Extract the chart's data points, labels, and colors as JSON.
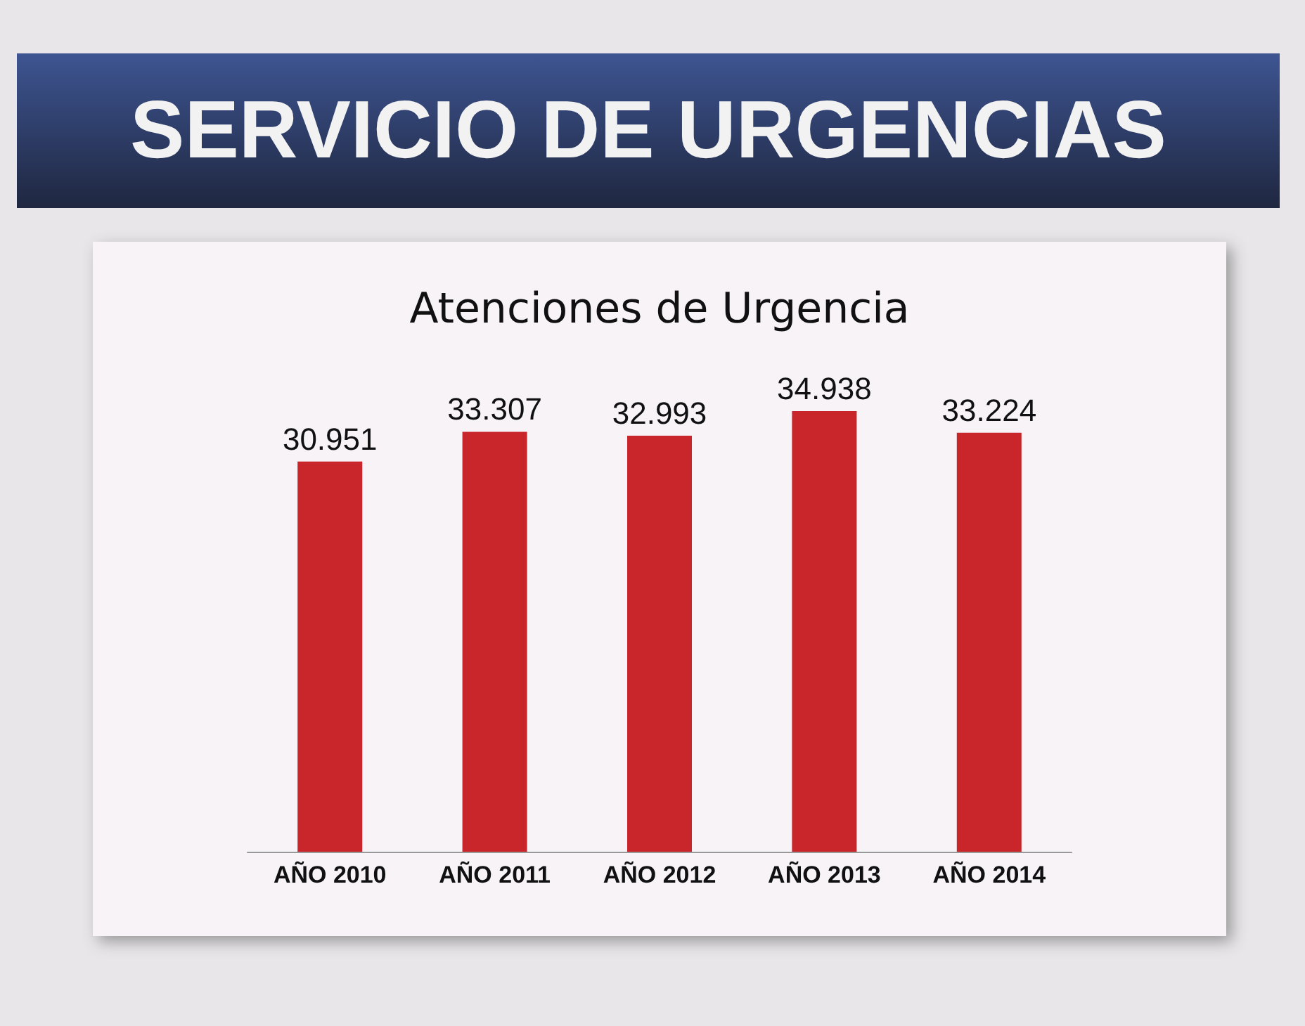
{
  "chart_data": {
    "type": "bar",
    "title": "SERVICIO DE URGENCIAS",
    "subtitle": "Atenciones de Urgencia",
    "categories": [
      "AÑO 2010",
      "AÑO 2011",
      "AÑO 2012",
      "AÑO 2013",
      "AÑO 2014"
    ],
    "values": [
      30951,
      33307,
      32993,
      34938,
      33224
    ],
    "value_labels": [
      "30.951",
      "33.307",
      "32.993",
      "34.938",
      "33.224"
    ],
    "color": "#c8262a"
  }
}
